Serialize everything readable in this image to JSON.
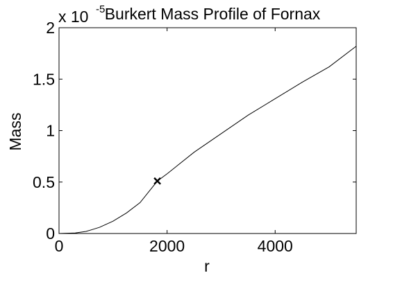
{
  "chart_data": {
    "type": "line",
    "title": "Burkert Mass Profile of Fornax",
    "xlabel": "r",
    "ylabel": "Mass",
    "y_multiplier": {
      "base": "x 10",
      "exponent": "-5"
    },
    "xlim": [
      0,
      5500
    ],
    "xticks": [
      0,
      2000,
      4000
    ],
    "ylim": [
      0,
      2
    ],
    "yticks": [
      0,
      0.5,
      1,
      1.5,
      2
    ],
    "series": [
      {
        "color": "#000000",
        "x": [
          0,
          300,
          500,
          750,
          1000,
          1250,
          1500,
          1820,
          2000,
          2500,
          3000,
          3500,
          4000,
          4500,
          5000,
          5500
        ],
        "values": [
          0,
          0.005,
          0.02,
          0.06,
          0.12,
          0.2,
          0.3,
          0.51,
          0.58,
          0.79,
          0.97,
          1.15,
          1.31,
          1.47,
          1.62,
          1.82
        ]
      },
      {
        "color": "#000000",
        "marker": "x",
        "x": [
          1820
        ],
        "values": [
          0.51
        ]
      }
    ]
  }
}
